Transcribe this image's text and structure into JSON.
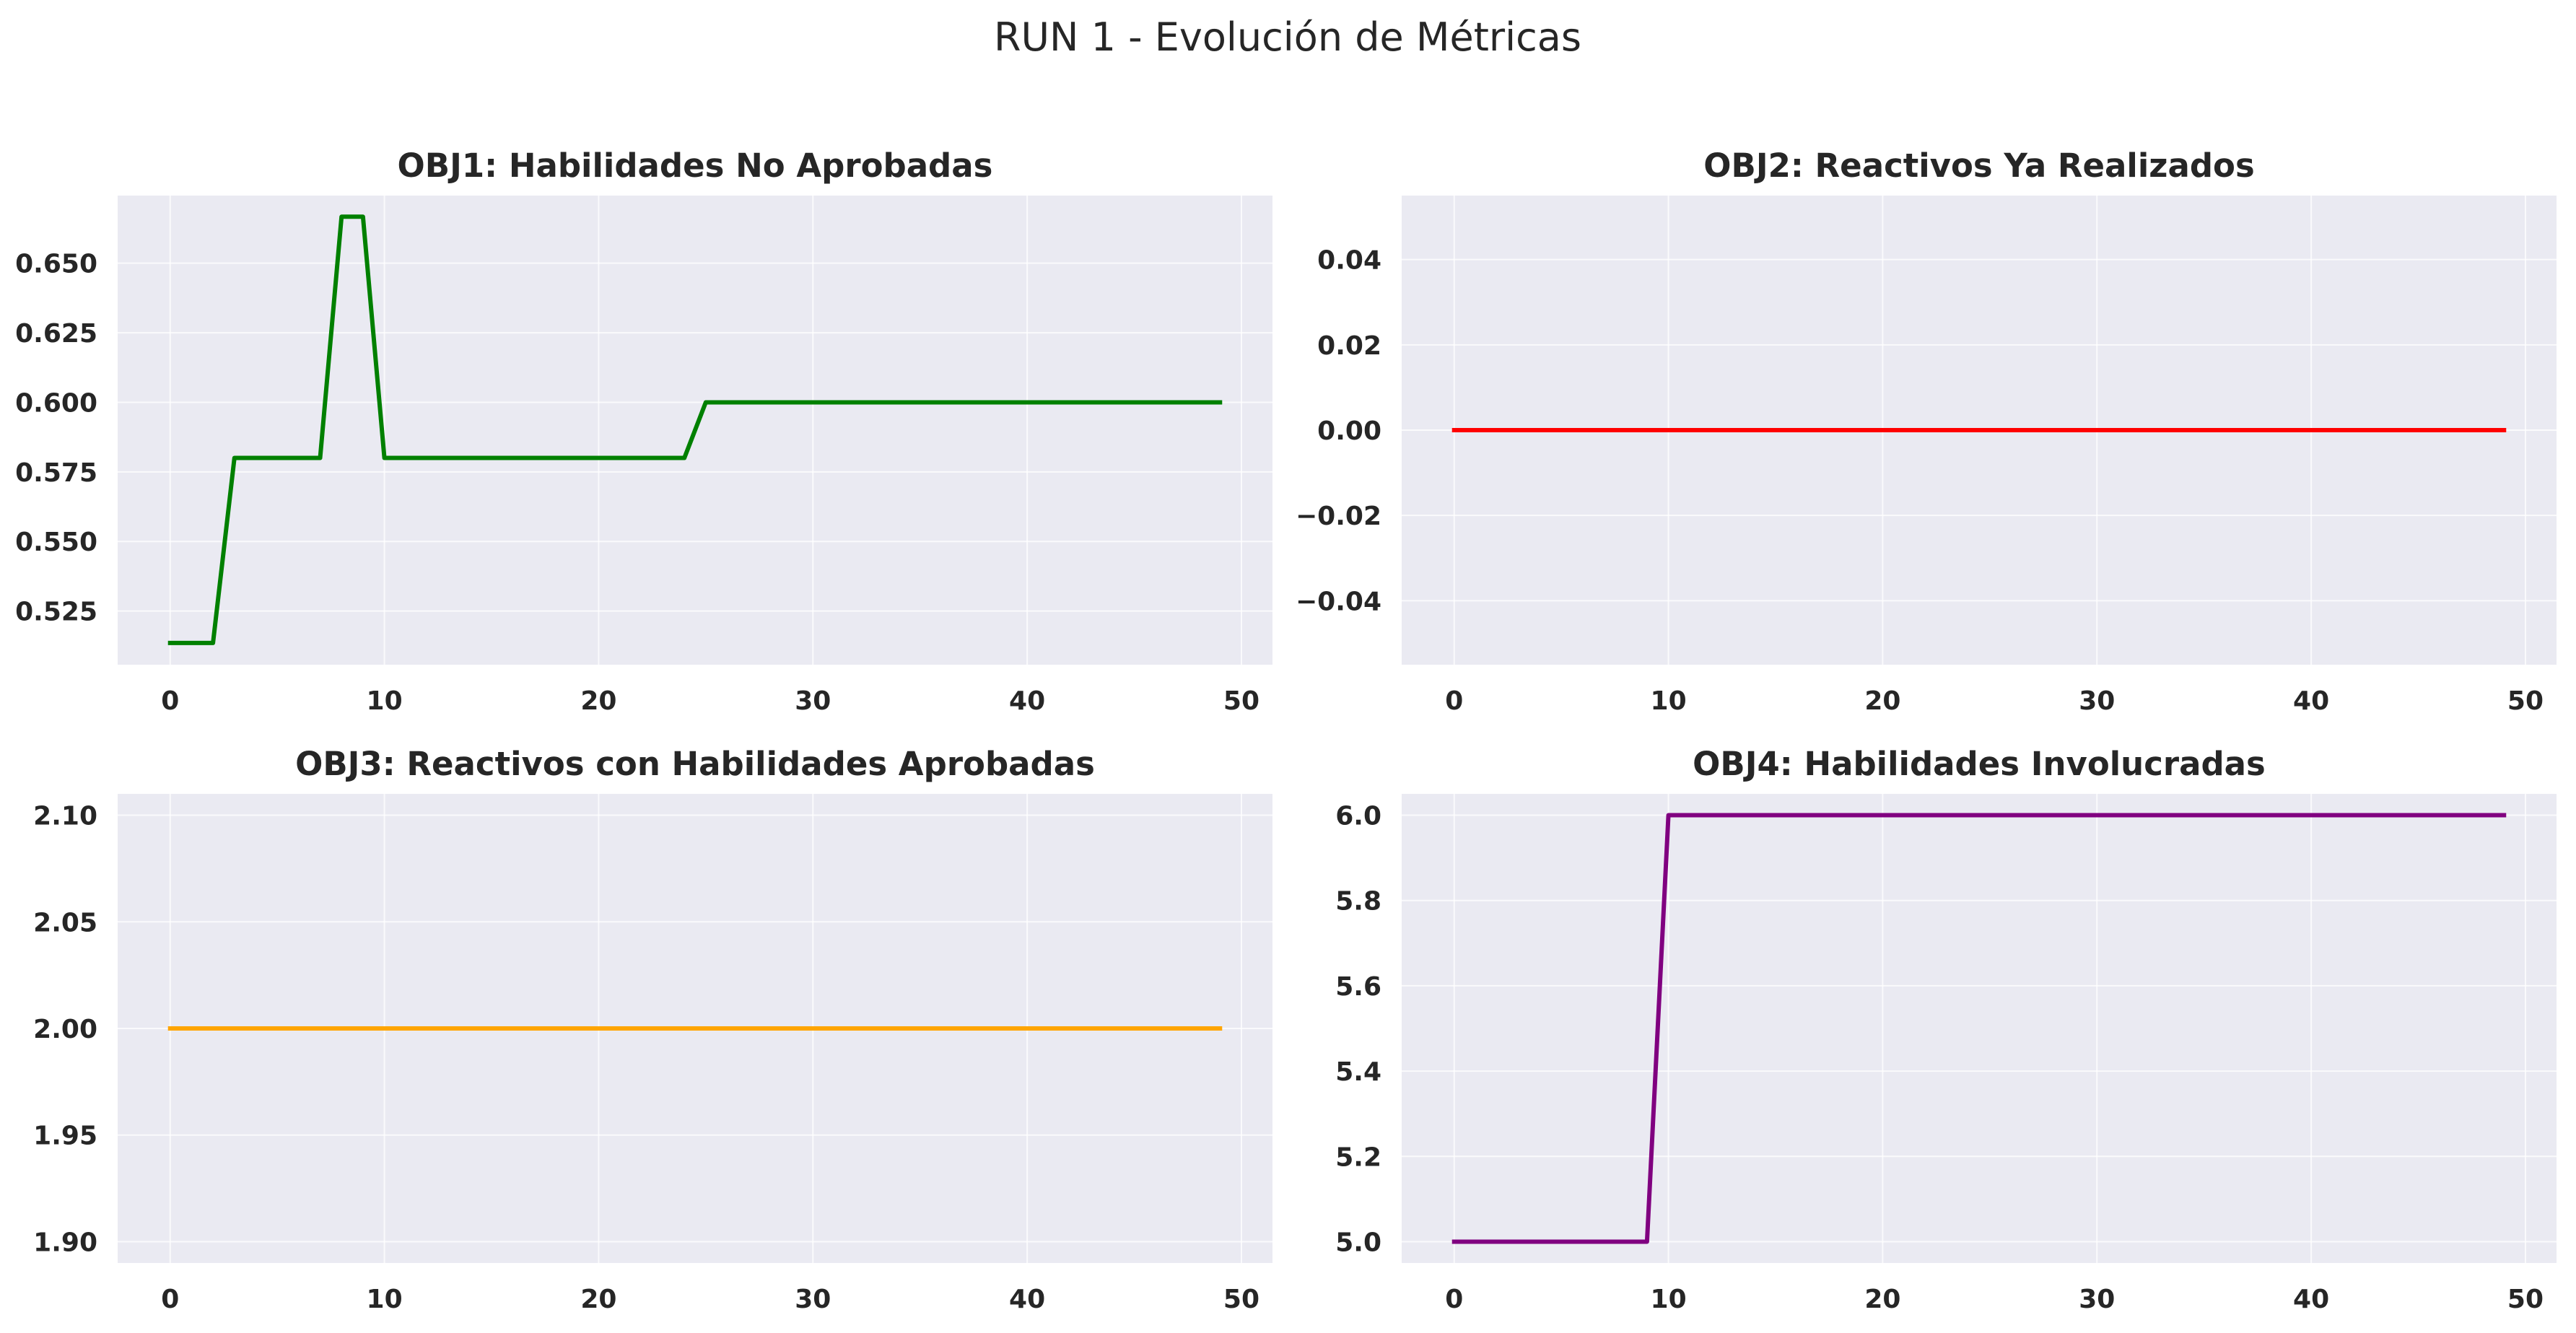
{
  "figure": {
    "title": "RUN 1 - Evolución de Métricas"
  },
  "chart_data": [
    {
      "type": "line",
      "title": "OBJ1: Habilidades No Aprobadas",
      "xlabel": "",
      "ylabel": "",
      "xlim": [
        -2.45,
        51.45
      ],
      "ylim": [
        0.5057,
        0.6743
      ],
      "xticks": [
        0,
        10,
        20,
        30,
        40,
        50
      ],
      "xtick_labels": [
        "0",
        "10",
        "20",
        "30",
        "40",
        "50"
      ],
      "yticks": [
        0.525,
        0.55,
        0.575,
        0.6,
        0.625,
        0.65
      ],
      "ytick_labels": [
        "0.525",
        "0.550",
        "0.575",
        "0.600",
        "0.625",
        "0.650"
      ],
      "grid": true,
      "color": "#008000",
      "x": [
        0,
        1,
        2,
        3,
        4,
        5,
        6,
        7,
        8,
        9,
        10,
        11,
        12,
        13,
        14,
        15,
        16,
        17,
        18,
        19,
        20,
        21,
        22,
        23,
        24,
        25,
        26,
        27,
        28,
        29,
        30,
        31,
        32,
        33,
        34,
        35,
        36,
        37,
        38,
        39,
        40,
        41,
        42,
        43,
        44,
        45,
        46,
        47,
        48,
        49
      ],
      "y": [
        0.5135,
        0.5135,
        0.5135,
        0.58,
        0.58,
        0.58,
        0.58,
        0.58,
        0.6667,
        0.6667,
        0.58,
        0.58,
        0.58,
        0.58,
        0.58,
        0.58,
        0.58,
        0.58,
        0.58,
        0.58,
        0.58,
        0.58,
        0.58,
        0.58,
        0.58,
        0.6,
        0.6,
        0.6,
        0.6,
        0.6,
        0.6,
        0.6,
        0.6,
        0.6,
        0.6,
        0.6,
        0.6,
        0.6,
        0.6,
        0.6,
        0.6,
        0.6,
        0.6,
        0.6,
        0.6,
        0.6,
        0.6,
        0.6,
        0.6,
        0.6
      ]
    },
    {
      "type": "line",
      "title": "OBJ2: Reactivos Ya Realizados",
      "xlabel": "",
      "ylabel": "",
      "xlim": [
        -2.45,
        51.45
      ],
      "ylim": [
        -0.055,
        0.055
      ],
      "xticks": [
        0,
        10,
        20,
        30,
        40,
        50
      ],
      "xtick_labels": [
        "0",
        "10",
        "20",
        "30",
        "40",
        "50"
      ],
      "yticks": [
        -0.04,
        -0.02,
        0,
        0.02,
        0.04
      ],
      "ytick_labels": [
        "−0.04",
        "−0.02",
        "0.00",
        "0.02",
        "0.04"
      ],
      "grid": true,
      "color": "#ff0000",
      "x": [
        0,
        1,
        2,
        3,
        4,
        5,
        6,
        7,
        8,
        9,
        10,
        11,
        12,
        13,
        14,
        15,
        16,
        17,
        18,
        19,
        20,
        21,
        22,
        23,
        24,
        25,
        26,
        27,
        28,
        29,
        30,
        31,
        32,
        33,
        34,
        35,
        36,
        37,
        38,
        39,
        40,
        41,
        42,
        43,
        44,
        45,
        46,
        47,
        48,
        49
      ],
      "y": [
        0,
        0,
        0,
        0,
        0,
        0,
        0,
        0,
        0,
        0,
        0,
        0,
        0,
        0,
        0,
        0,
        0,
        0,
        0,
        0,
        0,
        0,
        0,
        0,
        0,
        0,
        0,
        0,
        0,
        0,
        0,
        0,
        0,
        0,
        0,
        0,
        0,
        0,
        0,
        0,
        0,
        0,
        0,
        0,
        0,
        0,
        0,
        0,
        0,
        0
      ]
    },
    {
      "type": "line",
      "title": "OBJ3: Reactivos con Habilidades Aprobadas",
      "xlabel": "",
      "ylabel": "",
      "xlim": [
        -2.45,
        51.45
      ],
      "ylim": [
        1.89,
        2.11
      ],
      "xticks": [
        0,
        10,
        20,
        30,
        40,
        50
      ],
      "xtick_labels": [
        "0",
        "10",
        "20",
        "30",
        "40",
        "50"
      ],
      "yticks": [
        1.9,
        1.95,
        2.0,
        2.05,
        2.1
      ],
      "ytick_labels": [
        "1.90",
        "1.95",
        "2.00",
        "2.05",
        "2.10"
      ],
      "grid": true,
      "color": "#ffa500",
      "x": [
        0,
        1,
        2,
        3,
        4,
        5,
        6,
        7,
        8,
        9,
        10,
        11,
        12,
        13,
        14,
        15,
        16,
        17,
        18,
        19,
        20,
        21,
        22,
        23,
        24,
        25,
        26,
        27,
        28,
        29,
        30,
        31,
        32,
        33,
        34,
        35,
        36,
        37,
        38,
        39,
        40,
        41,
        42,
        43,
        44,
        45,
        46,
        47,
        48,
        49
      ],
      "y": [
        2,
        2,
        2,
        2,
        2,
        2,
        2,
        2,
        2,
        2,
        2,
        2,
        2,
        2,
        2,
        2,
        2,
        2,
        2,
        2,
        2,
        2,
        2,
        2,
        2,
        2,
        2,
        2,
        2,
        2,
        2,
        2,
        2,
        2,
        2,
        2,
        2,
        2,
        2,
        2,
        2,
        2,
        2,
        2,
        2,
        2,
        2,
        2,
        2,
        2
      ]
    },
    {
      "type": "line",
      "title": "OBJ4: Habilidades Involucradas",
      "xlabel": "",
      "ylabel": "",
      "xlim": [
        -2.45,
        51.45
      ],
      "ylim": [
        4.95,
        6.05
      ],
      "xticks": [
        0,
        10,
        20,
        30,
        40,
        50
      ],
      "xtick_labels": [
        "0",
        "10",
        "20",
        "30",
        "40",
        "50"
      ],
      "yticks": [
        5.0,
        5.2,
        5.4,
        5.6,
        5.8,
        6.0
      ],
      "ytick_labels": [
        "5.0",
        "5.2",
        "5.4",
        "5.6",
        "5.8",
        "6.0"
      ],
      "grid": true,
      "color": "#800080",
      "x": [
        0,
        1,
        2,
        3,
        4,
        5,
        6,
        7,
        8,
        9,
        10,
        11,
        12,
        13,
        14,
        15,
        16,
        17,
        18,
        19,
        20,
        21,
        22,
        23,
        24,
        25,
        26,
        27,
        28,
        29,
        30,
        31,
        32,
        33,
        34,
        35,
        36,
        37,
        38,
        39,
        40,
        41,
        42,
        43,
        44,
        45,
        46,
        47,
        48,
        49
      ],
      "y": [
        5,
        5,
        5,
        5,
        5,
        5,
        5,
        5,
        5,
        5,
        6,
        6,
        6,
        6,
        6,
        6,
        6,
        6,
        6,
        6,
        6,
        6,
        6,
        6,
        6,
        6,
        6,
        6,
        6,
        6,
        6,
        6,
        6,
        6,
        6,
        6,
        6,
        6,
        6,
        6,
        6,
        6,
        6,
        6,
        6,
        6,
        6,
        6,
        6,
        6
      ]
    }
  ]
}
